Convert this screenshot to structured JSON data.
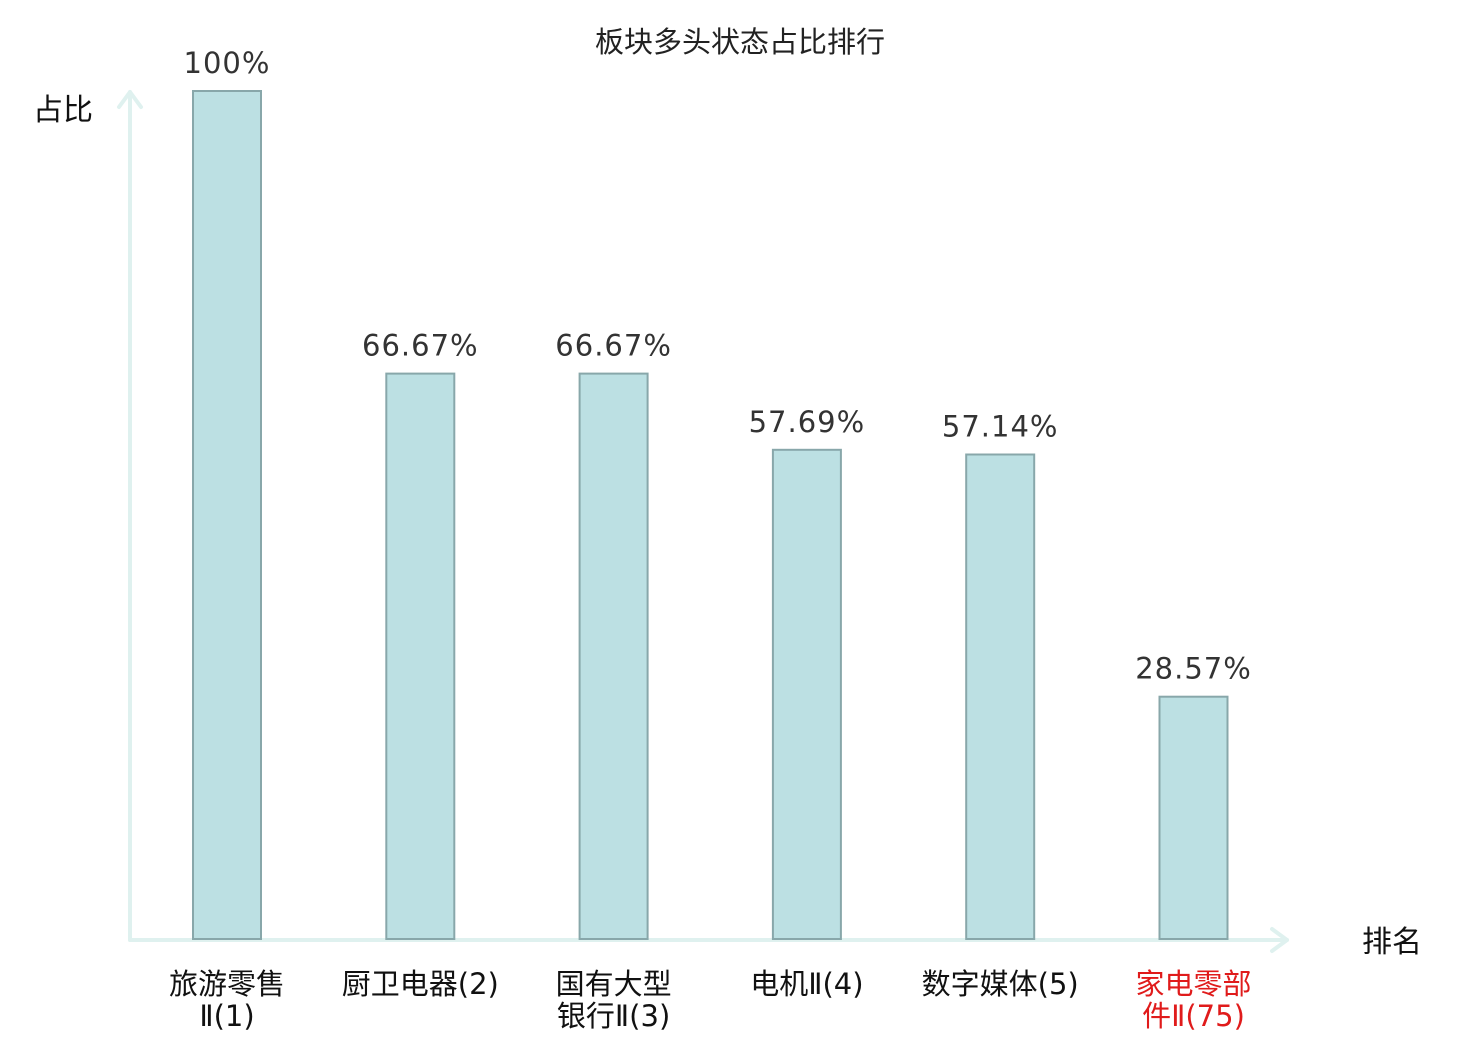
{
  "chart_data": {
    "type": "bar",
    "title": "板块多头状态占比排行",
    "ylabel": "占比",
    "xlabel": "排名",
    "categories": [
      {
        "lines": [
          "旅游零售",
          "Ⅱ(1)"
        ],
        "highlight": false
      },
      {
        "lines": [
          "厨卫电器(2)"
        ],
        "highlight": false
      },
      {
        "lines": [
          "国有大型",
          "银行Ⅱ(3)"
        ],
        "highlight": false
      },
      {
        "lines": [
          "电机Ⅱ(4)"
        ],
        "highlight": false
      },
      {
        "lines": [
          "数字媒体(5)"
        ],
        "highlight": false
      },
      {
        "lines": [
          "家电零部",
          "件Ⅱ(75)"
        ],
        "highlight": true
      }
    ],
    "values": [
      100,
      66.67,
      66.67,
      57.69,
      57.14,
      28.57
    ],
    "value_labels": [
      "100%",
      "66.67%",
      "66.67%",
      "57.69%",
      "57.14%",
      "28.57%"
    ],
    "ylim": [
      0,
      100
    ],
    "grid": false,
    "colors": {
      "bar_fill": "#bce0e3",
      "bar_stroke": "#88a7aa",
      "axis": "#dff1ef",
      "text_normal": "#111111",
      "text_highlight": "#e01b1b",
      "value_text": "#333333"
    }
  }
}
